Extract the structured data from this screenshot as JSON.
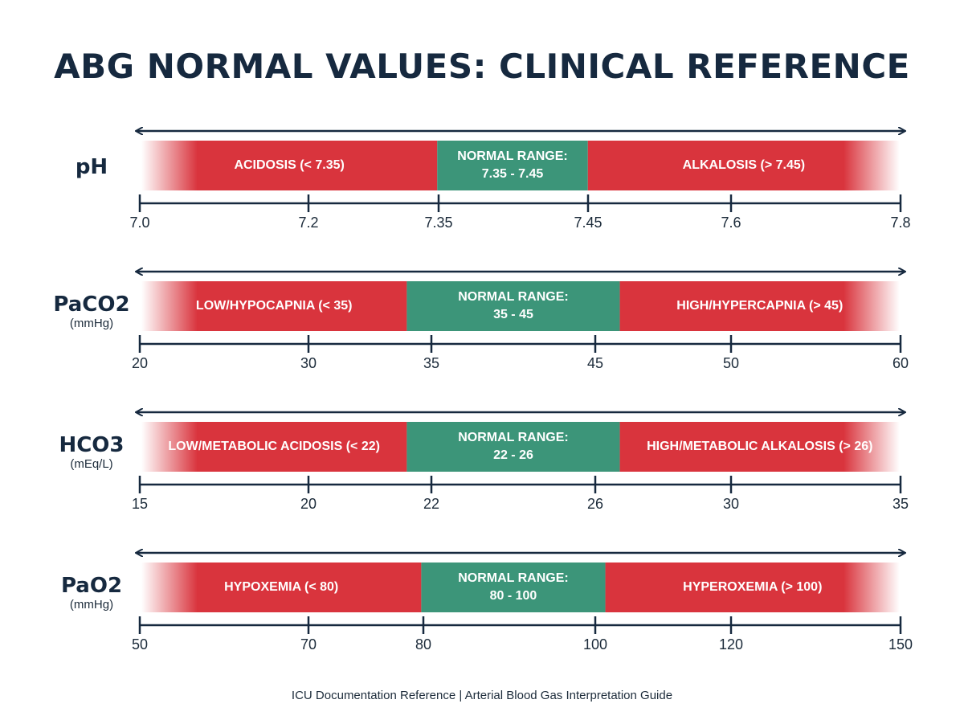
{
  "title": "ABG NORMAL VALUES: CLINICAL REFERENCE",
  "footer": "ICU Documentation Reference | Arterial Blood Gas Interpretation Guide",
  "colors": {
    "abnormal": "#d9343d",
    "normal": "#3c9579",
    "line": "#16293f"
  },
  "icons": {
    "axis_arrow": "double-arrow"
  },
  "parameters": [
    {
      "name": "pH",
      "unit": "",
      "low_label": "ACIDOSIS (< 7.35)",
      "normal_line1": "NORMAL RANGE:",
      "normal_line2": "7.35 - 7.45",
      "high_label": "ALKALOSIS (> 7.45)",
      "boundaries_fraction": [
        0.391,
        0.589
      ],
      "ticks": [
        "7.0",
        "7.2",
        "7.35",
        "7.45",
        "7.6",
        "7.8"
      ]
    },
    {
      "name": "PaCO2",
      "unit": "(mmHg)",
      "low_label": "LOW/HYPOCAPNIA (< 35)",
      "normal_line1": "NORMAL RANGE:",
      "normal_line2": "35 - 45",
      "high_label": "HIGH/HYPERCAPNIA (> 45)",
      "boundaries_fraction": [
        0.351,
        0.631
      ],
      "ticks": [
        "20",
        "30",
        "35",
        "45",
        "50",
        "60"
      ]
    },
    {
      "name": "HCO3",
      "unit": "(mEq/L)",
      "low_label": "LOW/METABOLIC ACIDOSIS (< 22)",
      "normal_line1": "NORMAL RANGE:",
      "normal_line2": "22 - 26",
      "high_label": "HIGH/METABOLIC ALKALOSIS (> 26)",
      "boundaries_fraction": [
        0.351,
        0.631
      ],
      "ticks": [
        "15",
        "20",
        "22",
        "26",
        "30",
        "35"
      ]
    },
    {
      "name": "PaO2",
      "unit": "(mmHg)",
      "low_label": "HYPOXEMIA (< 80)",
      "normal_line1": "NORMAL RANGE:",
      "normal_line2": "80 - 100",
      "high_label": "HYPEROXEMIA (> 100)",
      "boundaries_fraction": [
        0.37,
        0.612
      ],
      "ticks": [
        "50",
        "70",
        "80",
        "100",
        "120",
        "150"
      ]
    }
  ]
}
